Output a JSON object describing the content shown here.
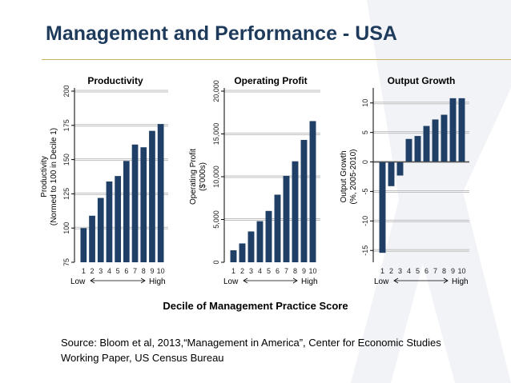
{
  "slide": {
    "title": "Management and Performance - USA",
    "x_caption": "Decile of Management Practice Score",
    "source": "Source: Bloom et al, 2013,“Management in America”, Center for Economic Studies Working Paper, US Census Bureau",
    "colors": {
      "title": "#1f3b5c",
      "bar": "#1f3f66",
      "rule": "#c9b35c"
    }
  },
  "chart_data": [
    {
      "type": "bar",
      "title": "Productivity",
      "ylabel": [
        "Productivity",
        "(Normed to 100 in Decile 1)"
      ],
      "categories": [
        "1",
        "2",
        "3",
        "4",
        "5",
        "6",
        "7",
        "8",
        "9",
        "10"
      ],
      "values": [
        100,
        109,
        122,
        134,
        138,
        149,
        161,
        159,
        171,
        176
      ],
      "ylim": [
        75,
        200
      ],
      "yticks": [
        75,
        100,
        125,
        150,
        175,
        200
      ],
      "yticklabels": [
        "75",
        "100",
        "125",
        "150",
        "175",
        "200"
      ],
      "low_label": "Low",
      "high_label": "High"
    },
    {
      "type": "bar",
      "title": "Operating Profit",
      "ylabel": [
        "Operating Profit",
        "($'000s)"
      ],
      "categories": [
        "1",
        "2",
        "3",
        "4",
        "5",
        "6",
        "7",
        "8",
        "9",
        "10"
      ],
      "values": [
        1400,
        2200,
        3600,
        4800,
        6000,
        7900,
        10100,
        11800,
        14300,
        16500
      ],
      "ylim": [
        0,
        20000
      ],
      "yticks": [
        0,
        5000,
        10000,
        15000,
        20000
      ],
      "yticklabels": [
        "0",
        "5,000",
        "10,000",
        "15,000",
        "20,000"
      ],
      "low_label": "Low",
      "high_label": "High"
    },
    {
      "type": "bar",
      "title": "Output Growth",
      "ylabel": [
        "Output Growth",
        "(%, 2005-2010)"
      ],
      "categories": [
        "1",
        "2",
        "3",
        "4",
        "5",
        "6",
        "7",
        "8",
        "9",
        "10"
      ],
      "values": [
        -15.4,
        -4.1,
        -2.3,
        3.9,
        4.4,
        6.1,
        7.2,
        8.0,
        10.8,
        10.8
      ],
      "ylim": [
        -17,
        12
      ],
      "yticks": [
        -15,
        -10,
        -5,
        0,
        5,
        10
      ],
      "yticklabels": [
        "-15",
        "-10",
        "-5",
        "0",
        "5",
        "10"
      ],
      "low_label": "Low",
      "high_label": "High"
    }
  ]
}
